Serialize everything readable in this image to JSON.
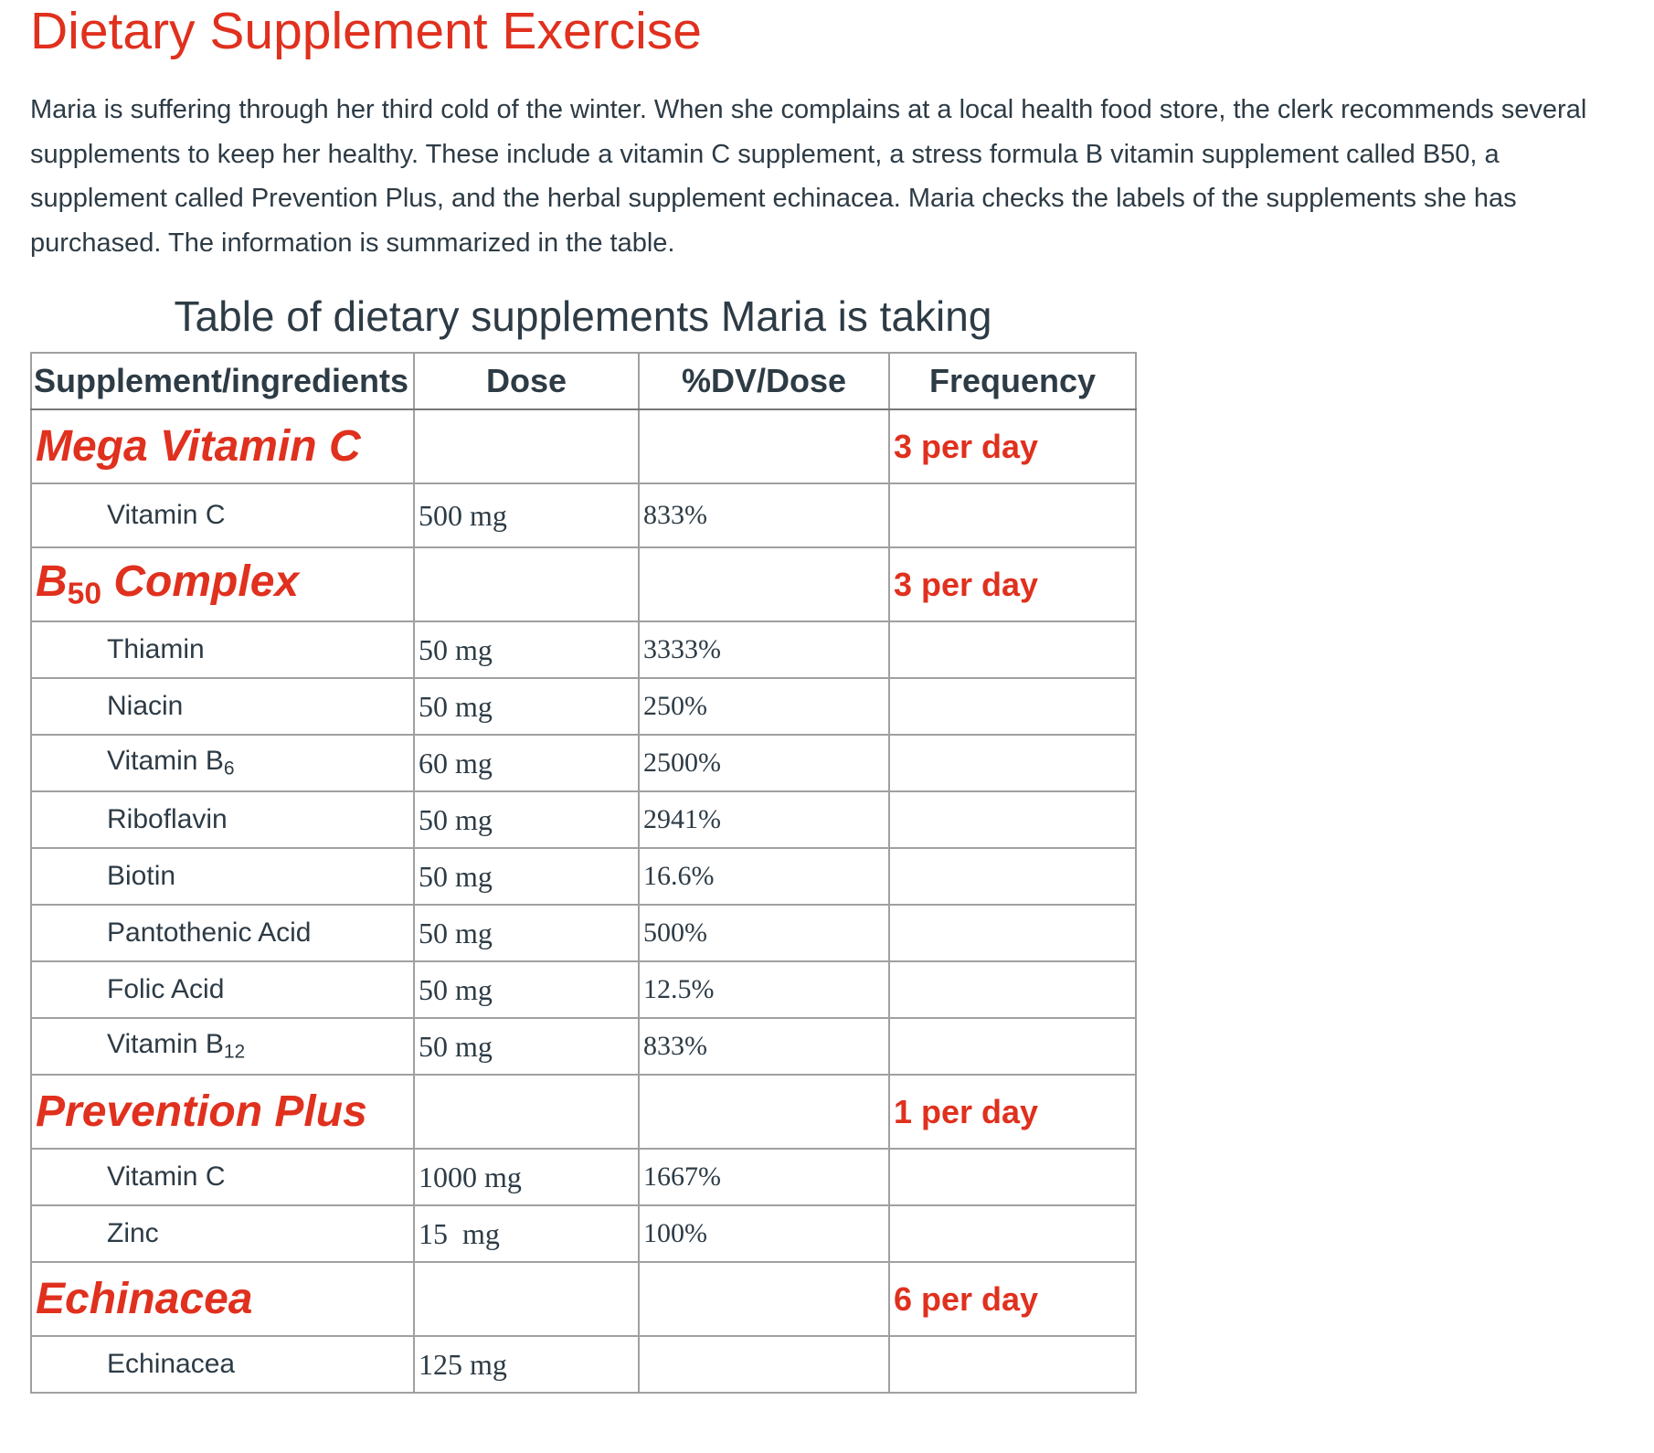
{
  "page": {
    "title": "Dietary Supplement Exercise",
    "intro": "Maria is suffering through her third cold of the winter. When she complains at a local health food store, the clerk recommends several supplements to keep her healthy. These include a vitamin C supplement, a stress formula B vitamin supplement called B50, a supplement called Prevention Plus, and the herbal supplement echinacea. Maria checks the labels of the supplements she has purchased. The information is summarized in the table."
  },
  "table": {
    "caption": "Table of dietary supplements Maria is taking",
    "headers": {
      "supplement": "Supplement/ingredients",
      "dose": "Dose",
      "dv": "%DV/Dose",
      "frequency": "Frequency"
    },
    "groups": [
      {
        "name": "Mega Vitamin C",
        "frequency": "3 per day",
        "ingredients": [
          {
            "name": "Vitamin C",
            "dose": "500 mg",
            "dv": "833%"
          }
        ]
      },
      {
        "name_base": "B",
        "name_sub": "50",
        "name_rest": " Complex",
        "frequency": "3 per day",
        "ingredients": [
          {
            "name": "Thiamin",
            "dose": "50 mg",
            "dv": "3333%"
          },
          {
            "name": "Niacin",
            "dose": "50 mg",
            "dv": "250%"
          },
          {
            "name_base": "Vitamin B",
            "name_sub": "6",
            "dose": "60 mg",
            "dv": "2500%"
          },
          {
            "name": "Riboflavin",
            "dose": "50 mg",
            "dv": "2941%"
          },
          {
            "name": "Biotin",
            "dose": "50 mg",
            "dv": "16.6%"
          },
          {
            "name": "Pantothenic Acid",
            "dose": "50 mg",
            "dv": "500%"
          },
          {
            "name": "Folic Acid",
            "dose": "50 mg",
            "dv": "12.5%"
          },
          {
            "name_base": "Vitamin B",
            "name_sub": "12",
            "dose": "50 mg",
            "dv": "833%"
          }
        ]
      },
      {
        "name": "Prevention Plus",
        "frequency": "1 per day",
        "ingredients": [
          {
            "name": "Vitamin C",
            "dose": "1000 mg",
            "dv": "1667%"
          },
          {
            "name": "Zinc",
            "dose": "15  mg",
            "dv": "100%"
          }
        ]
      },
      {
        "name": "Echinacea",
        "frequency": "6 per day",
        "ingredients": [
          {
            "name": "Echinacea",
            "dose": "125 mg",
            "dv": ""
          }
        ]
      }
    ]
  },
  "colors": {
    "accent": "#e0301e",
    "text": "#2d3b45",
    "border": "#a0a0a0"
  }
}
